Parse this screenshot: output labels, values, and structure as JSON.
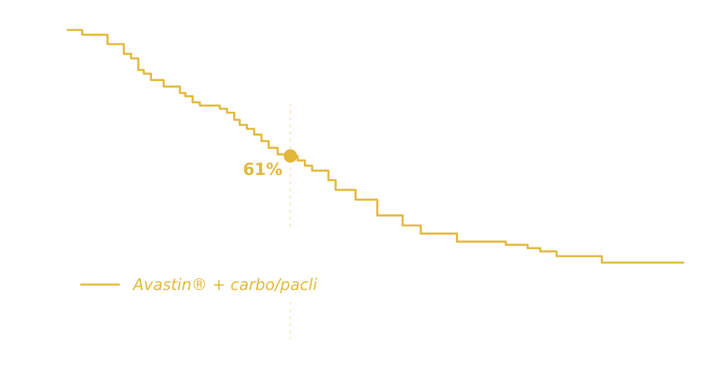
{
  "colors": {
    "series": "#e2b83a",
    "guide": "#f1dfa0"
  },
  "chart_data": {
    "type": "line",
    "step": true,
    "title": "",
    "xlabel": "",
    "ylabel": "",
    "grid": false,
    "legend": {
      "placement": "bottom-left",
      "entries": [
        "Avastin® + carbo/pacli"
      ]
    },
    "series": [
      {
        "name": "Avastin® + carbo/pacli",
        "x": [
          0,
          0.8,
          1.2,
          2.2,
          2.6,
          3.1,
          3.5,
          3.9,
          4.2,
          4.6,
          5.0,
          5.3,
          6.2,
          6.5,
          6.9,
          7.3,
          8.0,
          8.4,
          8.8,
          9.2,
          9.5,
          9.9,
          10.3,
          10.7,
          11.1,
          11.6,
          11.9,
          12.3,
          12.7,
          13.1,
          13.5,
          14.0,
          14.4,
          14.8,
          15.2,
          15.9,
          16.5,
          17.1,
          17.5,
          18.5,
          19.5,
          20.2,
          21.5,
          22.8,
          24.2,
          25.4,
          26.1,
          27.0,
          28.5,
          29.5,
          34.0
        ],
        "y": [
          100,
          98.5,
          98.5,
          95.6,
          95.6,
          92.6,
          91.2,
          87.6,
          86.5,
          84.5,
          84.5,
          82.5,
          80.5,
          79.5,
          77.6,
          76.6,
          76.6,
          75.6,
          74.4,
          72.2,
          70.6,
          69.4,
          67.6,
          65.6,
          63.5,
          61.5,
          61.5,
          61,
          59.6,
          58,
          56.5,
          56.5,
          53.5,
          50.5,
          50.5,
          47.5,
          47.5,
          42.6,
          42.6,
          39.5,
          37,
          37,
          34.5,
          34.5,
          33.5,
          32.5,
          31.5,
          30,
          30,
          28,
          28
        ]
      }
    ],
    "xlim": [
      0,
      34
    ],
    "ylim": [
      0,
      100
    ],
    "annotations": [
      {
        "x": 12.3,
        "y": 61,
        "label": "61%"
      }
    ]
  }
}
